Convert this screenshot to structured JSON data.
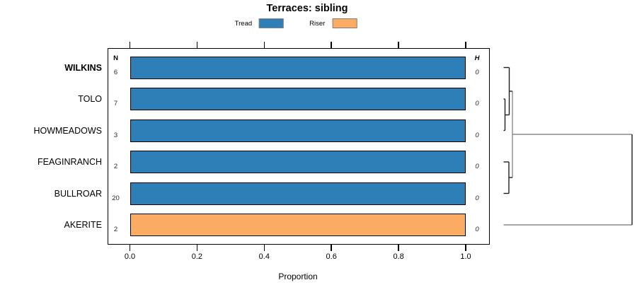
{
  "title": "Terraces: sibling",
  "legend": [
    {
      "label": "Tread",
      "color": "#2E7EB8"
    },
    {
      "label": "Riser",
      "color": "#FCAC62"
    }
  ],
  "columns": {
    "n_header": "N",
    "h_header": "H"
  },
  "x_axis": {
    "label": "Proportion",
    "tick_labels": [
      "0.0",
      "0.2",
      "0.4",
      "0.6",
      "0.8",
      "1.0"
    ]
  },
  "colors": {
    "tread": "#2E7EB8",
    "riser": "#FCAC62",
    "bar_border": "#000000",
    "legend_border": "#808080",
    "dendro_dark": "#1f1f1f",
    "dendro_gray": "#8a8a8a"
  },
  "chart_data": {
    "type": "bar",
    "orientation": "horizontal",
    "title": "Terraces: sibling",
    "xlabel": "Proportion",
    "xlim": [
      0,
      1
    ],
    "grid": false,
    "x_ticks": {
      "values": [
        0,
        0.2,
        0.4,
        0.6,
        0.8,
        1.0
      ],
      "labels": [
        "0.0",
        "0.2",
        "0.4",
        "0.6",
        "0.8",
        "1.0"
      ]
    },
    "categories": [
      "WILKINS",
      "TOLO",
      "HOWMEADOWS",
      "FEAGINRANCH",
      "BULLROAR",
      "AKERITE"
    ],
    "series": [
      {
        "name": "Tread",
        "values": [
          1.0,
          1.0,
          1.0,
          1.0,
          1.0,
          0
        ]
      },
      {
        "name": "Riser",
        "values": [
          0,
          0,
          0,
          0,
          0,
          1.0
        ]
      }
    ],
    "rows": [
      {
        "label": "WILKINS",
        "group": "Tread",
        "value": 1.0,
        "n": "6",
        "h": "0",
        "bold": true
      },
      {
        "label": "TOLO",
        "group": "Tread",
        "value": 1.0,
        "n": "7",
        "h": "0",
        "bold": false
      },
      {
        "label": "HOWMEADOWS",
        "group": "Tread",
        "value": 1.0,
        "n": "3",
        "h": "0",
        "bold": false
      },
      {
        "label": "FEAGINRANCH",
        "group": "Tread",
        "value": 1.0,
        "n": "2",
        "h": "0",
        "bold": false
      },
      {
        "label": "BULLROAR",
        "group": "Tread",
        "value": 1.0,
        "n": "20",
        "h": "0",
        "bold": false
      },
      {
        "label": "AKERITE",
        "group": "Riser",
        "value": 1.0,
        "n": "2",
        "h": "0",
        "bold": false
      }
    ],
    "n_column": {
      "header": "N",
      "values": [
        "6",
        "7",
        "3",
        "2",
        "20",
        "2"
      ]
    },
    "h_column": {
      "header": "H",
      "values": [
        "0",
        "0",
        "0",
        "0",
        "0",
        "0"
      ]
    },
    "legend": {
      "position": "top",
      "entries": [
        "Tread",
        "Riser"
      ]
    },
    "dendrogram": {
      "side": "right",
      "leaf_order": [
        "WILKINS",
        "TOLO",
        "HOWMEADOWS",
        "FEAGINRANCH",
        "BULLROAR",
        "AKERITE"
      ],
      "structure": "((WILKINS,(TOLO,HOWMEADOWS)),(FEAGINRANCH,BULLROAR)) merged near height 0; that cluster joins AKERITE at a much larger unlabeled height"
    }
  }
}
